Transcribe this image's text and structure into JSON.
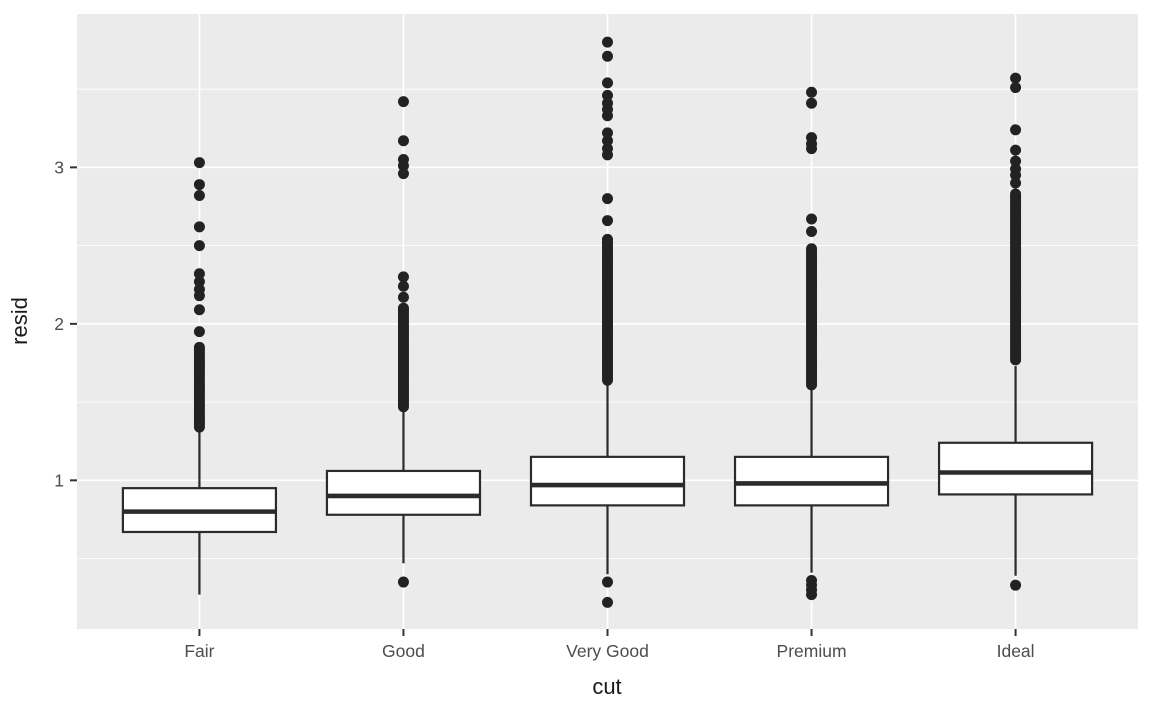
{
  "chart_data": {
    "type": "boxplot",
    "title": "",
    "xlabel": "cut",
    "ylabel": "resid",
    "categories": [
      "Fair",
      "Good",
      "Very Good",
      "Premium",
      "Ideal"
    ],
    "legend": "none",
    "grid": "on",
    "y_axis": {
      "ticks": [
        1,
        2,
        3
      ],
      "tick_labels": [
        "1",
        "2",
        "3"
      ],
      "minor_ticks": [
        0.5,
        1.5,
        2.5,
        3.5
      ],
      "lim": [
        0.05,
        3.98
      ]
    },
    "x_domain": [
      0.4,
      5.6
    ],
    "box_width": 0.75,
    "series": [
      {
        "category": "Fair",
        "whisker_low": 0.27,
        "q1": 0.67,
        "median": 0.8,
        "q3": 0.95,
        "whisker_high": 1.32,
        "outliers_low": [],
        "outliers_dense": {
          "min": 1.34,
          "max": 1.85,
          "count": 32
        },
        "outliers_high": [
          1.95,
          2.09,
          2.18,
          2.22,
          2.27,
          2.32,
          2.5,
          2.62,
          2.82,
          2.89,
          3.03
        ]
      },
      {
        "category": "Good",
        "whisker_low": 0.47,
        "q1": 0.78,
        "median": 0.9,
        "q3": 1.06,
        "whisker_high": 1.46,
        "outliers_low": [
          0.35
        ],
        "outliers_dense": {
          "min": 1.47,
          "max": 2.1,
          "count": 42
        },
        "outliers_high": [
          2.17,
          2.24,
          2.3,
          2.96,
          3.01,
          3.05,
          3.17,
          3.42
        ]
      },
      {
        "category": "Very Good",
        "whisker_low": 0.4,
        "q1": 0.84,
        "median": 0.97,
        "q3": 1.15,
        "whisker_high": 1.62,
        "outliers_low": [
          0.35,
          0.22
        ],
        "outliers_dense": {
          "min": 1.64,
          "max": 2.54,
          "count": 60
        },
        "outliers_high": [
          2.66,
          2.8,
          3.08,
          3.12,
          3.17,
          3.22,
          3.33,
          3.37,
          3.41,
          3.46,
          3.54,
          3.71,
          3.8
        ]
      },
      {
        "category": "Premium",
        "whisker_low": 0.41,
        "q1": 0.84,
        "median": 0.98,
        "q3": 1.15,
        "whisker_high": 1.59,
        "outliers_low": [
          0.36,
          0.33,
          0.3,
          0.27
        ],
        "outliers_dense": {
          "min": 1.61,
          "max": 2.48,
          "count": 56
        },
        "outliers_high": [
          2.59,
          2.67,
          3.12,
          3.15,
          3.19,
          3.41,
          3.48
        ]
      },
      {
        "category": "Ideal",
        "whisker_low": 0.39,
        "q1": 0.91,
        "median": 1.05,
        "q3": 1.24,
        "whisker_high": 1.73,
        "outliers_low": [
          0.33
        ],
        "outliers_dense": {
          "min": 1.77,
          "max": 2.83,
          "count": 68
        },
        "outliers_high": [
          2.9,
          2.95,
          2.99,
          3.04,
          3.11,
          3.24,
          3.51,
          3.57
        ]
      }
    ],
    "colors": {
      "panel_background": "#EBEBEB",
      "grid_major": "#FFFFFF",
      "grid_minor": "#FFFFFF",
      "box_fill": "#FFFFFF",
      "box_stroke": "#2B2B2B",
      "outlier_fill": "#222222",
      "tick_mark": "#333333",
      "tick_text": "#4D4D4D",
      "axis_title_text": "#1A1A1A",
      "outer_background": "#FFFFFF"
    }
  }
}
